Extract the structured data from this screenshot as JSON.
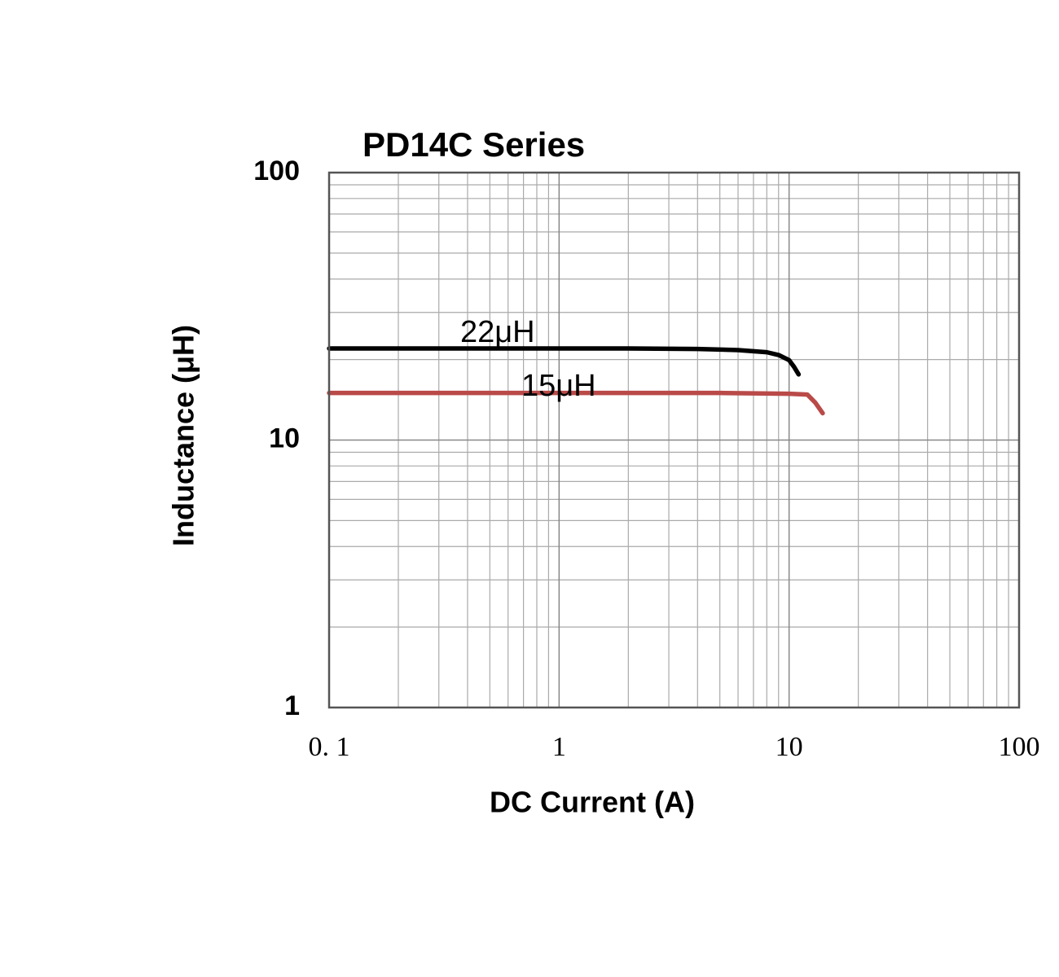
{
  "chart_data": {
    "type": "line",
    "title": "PD14C Series",
    "x_label": "DC Current (A)",
    "y_label": "Inductance (μH)",
    "x_log": true,
    "y_log": true,
    "grid": true,
    "xlim": [
      0.1,
      100
    ],
    "ylim": [
      1,
      100
    ],
    "xticks": [
      {
        "value": 0.1,
        "label": "0. 1"
      },
      1,
      10,
      100
    ],
    "yticks": [
      1,
      10,
      100
    ],
    "series": [
      {
        "name": "22μH",
        "color": "#000000",
        "x": [
          0.1,
          0.5,
          1,
          2,
          4,
          6,
          8,
          9,
          10,
          10.5,
          11
        ],
        "values": [
          22,
          22,
          22,
          22,
          21.9,
          21.7,
          21.3,
          20.8,
          19.9,
          18.8,
          17.6
        ]
      },
      {
        "name": "15μH",
        "color": "#b94a48",
        "x": [
          0.1,
          0.5,
          1,
          2,
          5,
          10,
          12,
          13,
          14
        ],
        "values": [
          15,
          15,
          15,
          15,
          15,
          14.9,
          14.8,
          13.8,
          12.6
        ]
      }
    ]
  }
}
